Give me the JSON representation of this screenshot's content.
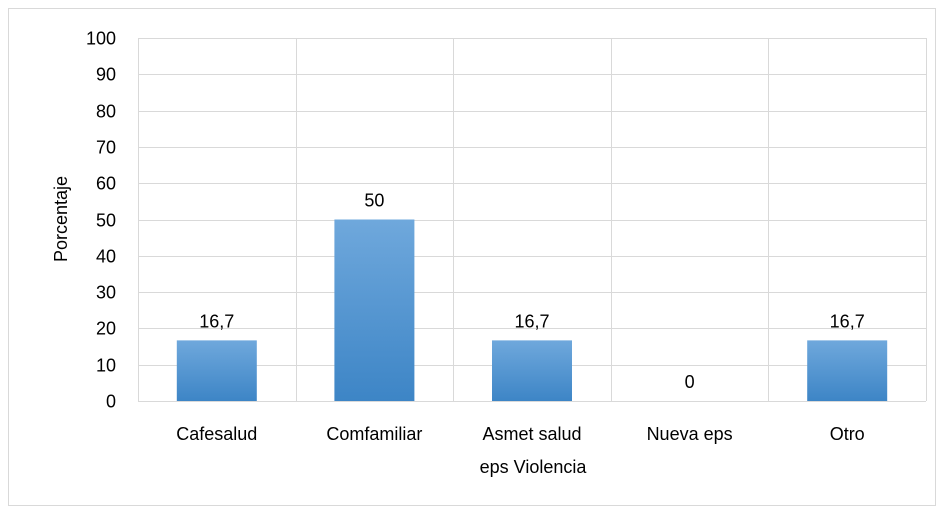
{
  "chart_data": {
    "type": "bar",
    "title": "",
    "xlabel": "eps Violencia",
    "ylabel": "Porcentaje",
    "categories": [
      "Cafesalud",
      "Comfamiliar",
      "Asmet salud",
      "Nueva eps",
      "Otro"
    ],
    "values": [
      16.7,
      50,
      16.7,
      0,
      16.7
    ],
    "data_labels": [
      "16,7",
      "50",
      "16,7",
      "0",
      "16,7"
    ],
    "ylim": [
      0,
      100
    ],
    "yticks": [
      0,
      10,
      20,
      30,
      40,
      50,
      60,
      70,
      80,
      90,
      100
    ],
    "grid": true,
    "legend": "none",
    "colors": {
      "bar_top": "#6fa8dc",
      "bar_bottom": "#3d85c6",
      "grid": "#d9d9d9",
      "text": "#000000"
    }
  }
}
